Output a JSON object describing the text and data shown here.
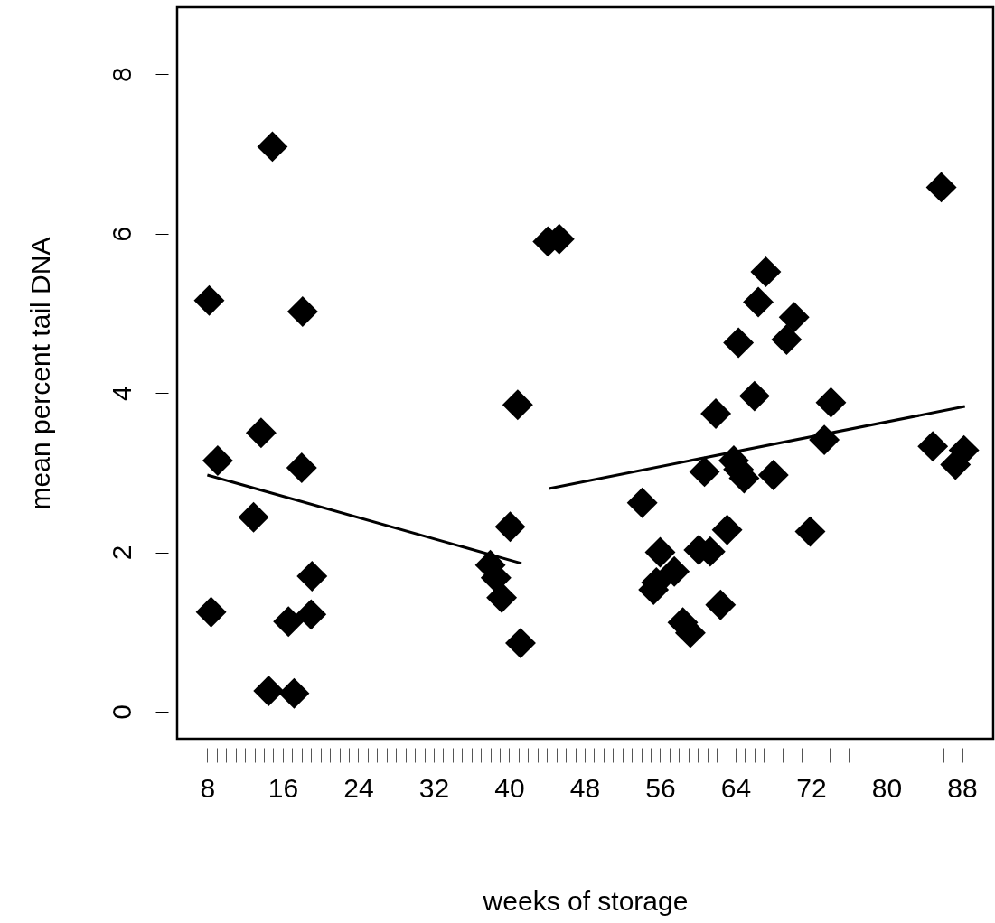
{
  "chart_data": {
    "type": "scatter",
    "xlabel": "weeks of storage",
    "ylabel": "mean percent tail DNA",
    "xlim": [
      4.8,
      91.3
    ],
    "ylim": [
      -0.34,
      8.84
    ],
    "xticks": [
      8,
      {
        "value": 9,
        "label": null
      },
      {
        "value": 10,
        "label": null
      },
      {
        "value": 11,
        "label": null
      },
      {
        "value": 12,
        "label": null
      },
      {
        "value": 13,
        "label": null
      },
      {
        "value": 14,
        "label": null
      },
      {
        "value": 15,
        "label": null
      },
      16,
      {
        "value": 17,
        "label": null
      },
      {
        "value": 18,
        "label": null
      },
      {
        "value": 19,
        "label": null
      },
      {
        "value": 20,
        "label": null
      },
      {
        "value": 21,
        "label": null
      },
      {
        "value": 22,
        "label": null
      },
      {
        "value": 23,
        "label": null
      },
      24,
      {
        "value": 25,
        "label": null
      },
      {
        "value": 26,
        "label": null
      },
      {
        "value": 27,
        "label": null
      },
      {
        "value": 28,
        "label": null
      },
      {
        "value": 29,
        "label": null
      },
      {
        "value": 30,
        "label": null
      },
      {
        "value": 31,
        "label": null
      },
      32,
      {
        "value": 33,
        "label": null
      },
      {
        "value": 34,
        "label": null
      },
      {
        "value": 35,
        "label": null
      },
      {
        "value": 36,
        "label": null
      },
      {
        "value": 37,
        "label": null
      },
      {
        "value": 38,
        "label": null
      },
      {
        "value": 39,
        "label": null
      },
      40,
      {
        "value": 41,
        "label": null
      },
      {
        "value": 42,
        "label": null
      },
      {
        "value": 43,
        "label": null
      },
      {
        "value": 44,
        "label": null
      },
      {
        "value": 45,
        "label": null
      },
      {
        "value": 46,
        "label": null
      },
      {
        "value": 47,
        "label": null
      },
      48,
      {
        "value": 49,
        "label": null
      },
      {
        "value": 50,
        "label": null
      },
      {
        "value": 51,
        "label": null
      },
      {
        "value": 52,
        "label": null
      },
      {
        "value": 53,
        "label": null
      },
      {
        "value": 54,
        "label": null
      },
      {
        "value": 55,
        "label": null
      },
      56,
      {
        "value": 57,
        "label": null
      },
      {
        "value": 58,
        "label": null
      },
      {
        "value": 59,
        "label": null
      },
      {
        "value": 60,
        "label": null
      },
      {
        "value": 61,
        "label": null
      },
      {
        "value": 62,
        "label": null
      },
      {
        "value": 63,
        "label": null
      },
      64,
      {
        "value": 65,
        "label": null
      },
      {
        "value": 66,
        "label": null
      },
      {
        "value": 67,
        "label": null
      },
      {
        "value": 68,
        "label": null
      },
      {
        "value": 69,
        "label": null
      },
      {
        "value": 70,
        "label": null
      },
      {
        "value": 71,
        "label": null
      },
      72,
      {
        "value": 73,
        "label": null
      },
      {
        "value": 74,
        "label": null
      },
      {
        "value": 75,
        "label": null
      },
      {
        "value": 76,
        "label": null
      },
      {
        "value": 77,
        "label": null
      },
      {
        "value": 78,
        "label": null
      },
      {
        "value": 79,
        "label": null
      },
      80,
      {
        "value": 81,
        "label": null
      },
      {
        "value": 82,
        "label": null
      },
      {
        "value": 83,
        "label": null
      },
      {
        "value": 84,
        "label": null
      },
      {
        "value": 85,
        "label": null
      },
      {
        "value": 86,
        "label": null
      },
      {
        "value": 87,
        "label": null
      },
      88
    ],
    "yticks": [
      0,
      2,
      4,
      6,
      8
    ],
    "grid": false,
    "series": [
      {
        "marker": "diamond",
        "color": "#000000",
        "x": [
          8.2,
          8.4,
          9.1,
          12.9,
          13.7,
          14.9,
          14.5,
          17.2,
          16.6,
          19.0,
          18.0,
          18.1,
          19.1,
          38.0,
          38.6,
          39.2,
          40.1,
          41.2,
          40.9,
          44.1,
          45.3,
          54.1,
          56.0,
          55.3,
          57.5,
          55.6,
          58.4,
          59.2,
          60.1,
          61.3,
          63.1,
          62.4,
          60.7,
          61.9,
          63.8,
          64.9,
          64.3,
          66.0,
          68.0,
          64.3,
          66.4,
          67.2,
          70.2,
          69.4,
          74.1,
          73.4,
          71.9,
          85.8,
          84.9,
          88.2,
          87.3
        ],
        "values": [
          5.16,
          1.25,
          3.15,
          2.44,
          3.5,
          7.09,
          0.26,
          0.23,
          1.13,
          1.22,
          3.06,
          5.02,
          1.7,
          1.84,
          1.68,
          1.43,
          2.32,
          0.86,
          3.85,
          5.9,
          5.93,
          2.62,
          2.0,
          1.53,
          1.76,
          1.62,
          1.12,
          0.99,
          2.03,
          2.01,
          2.28,
          1.34,
          3.01,
          3.74,
          3.15,
          2.93,
          3.04,
          3.96,
          2.97,
          4.63,
          5.14,
          5.52,
          4.95,
          4.67,
          3.88,
          3.41,
          2.26,
          6.58,
          3.33,
          3.28,
          3.1
        ]
      },
      {
        "type": "line",
        "color": "#000000",
        "x": [
          8,
          41.3
        ],
        "values": [
          2.97,
          1.86
        ]
      },
      {
        "type": "line",
        "color": "#000000",
        "x": [
          44.2,
          88.3
        ],
        "values": [
          2.8,
          3.83
        ]
      }
    ]
  }
}
